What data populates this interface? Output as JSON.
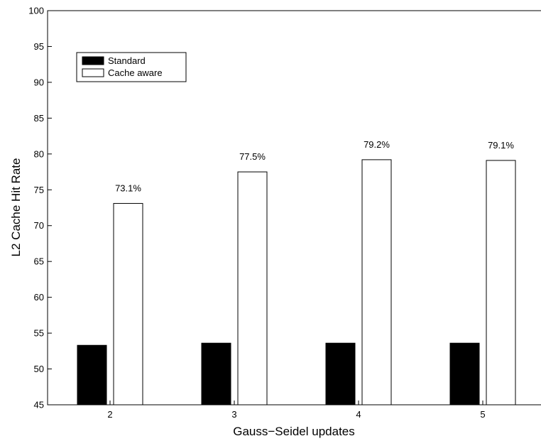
{
  "chart_data": {
    "type": "bar",
    "categories": [
      "2",
      "3",
      "4",
      "5"
    ],
    "series": [
      {
        "name": "Standard",
        "color": "#000000",
        "values": [
          53.3,
          53.6,
          53.6,
          53.6
        ]
      },
      {
        "name": "Cache aware",
        "color": "#ffffff",
        "values": [
          73.1,
          77.5,
          79.2,
          79.1
        ],
        "data_labels": [
          "73.1%",
          "77.5%",
          "79.2%",
          "79.1%"
        ]
      }
    ],
    "xlabel": "Gauss−Seidel updates",
    "ylabel": "L2 Cache Hit Rate",
    "ylim": [
      45,
      100
    ],
    "yticks": [
      45,
      50,
      55,
      60,
      65,
      70,
      75,
      80,
      85,
      90,
      95,
      100
    ],
    "legend_position": "top-left",
    "grid": false
  }
}
